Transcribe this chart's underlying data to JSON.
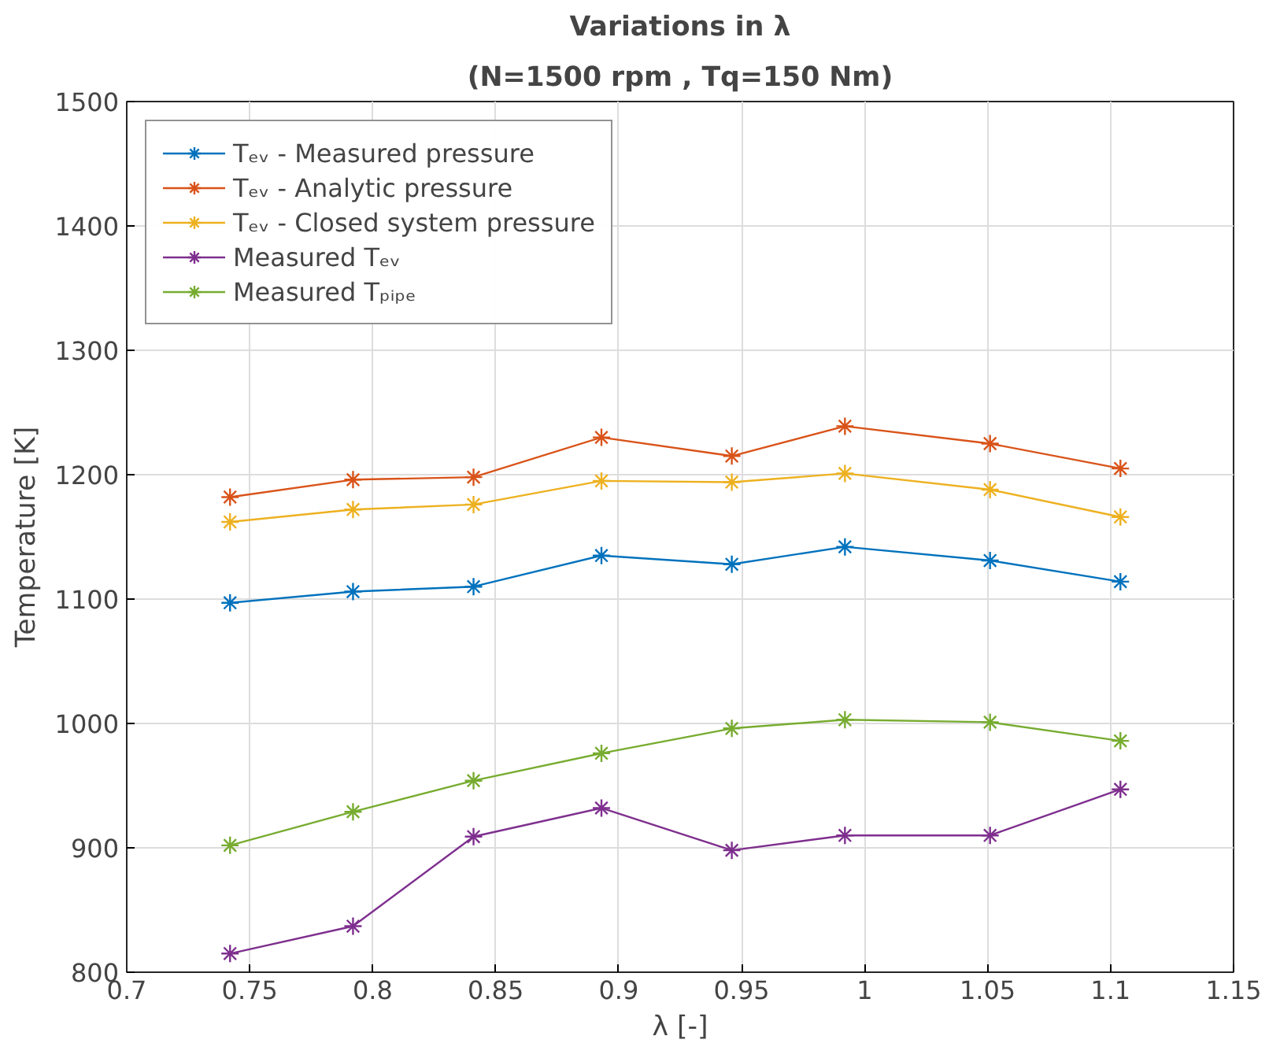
{
  "chart_data": {
    "type": "line",
    "title": "Variations in λ",
    "subtitle": "(N=1500 rpm , Tq=150 Nm)",
    "xlabel": "λ [-]",
    "ylabel": "Temperature [K]",
    "x": [
      0.742,
      0.792,
      0.841,
      0.893,
      0.946,
      0.992,
      1.051,
      1.104
    ],
    "series": [
      {
        "name": "Tₑᵥ - Measured pressure",
        "color": "#0072bd",
        "values": [
          1097,
          1106,
          1110,
          1135,
          1128,
          1142,
          1131,
          1114
        ]
      },
      {
        "name": "Tₑᵥ - Analytic pressure",
        "color": "#d95319",
        "values": [
          1182,
          1196,
          1198,
          1230,
          1215,
          1239,
          1225,
          1205
        ]
      },
      {
        "name": "Tₑᵥ - Closed system pressure",
        "color": "#edb120",
        "values": [
          1162,
          1172,
          1176,
          1195,
          1194,
          1201,
          1188,
          1166
        ]
      },
      {
        "name": "Measured Tₑᵥ",
        "color": "#7e2f8e",
        "values": [
          815,
          837,
          909,
          932,
          898,
          910,
          910,
          947
        ]
      },
      {
        "name": "Measured Tₚᵢₚₑ",
        "color": "#77ac30",
        "values": [
          902,
          929,
          954,
          976,
          996,
          1003,
          1001,
          986
        ]
      }
    ],
    "xlim": [
      0.7,
      1.15
    ],
    "xticks": [
      0.7,
      0.75,
      0.8,
      0.85,
      0.9,
      0.95,
      1,
      1.05,
      1.1,
      1.15
    ],
    "ylim": [
      800,
      1500
    ],
    "yticks": [
      800,
      900,
      1000,
      1100,
      1200,
      1300,
      1400,
      1500
    ],
    "grid": true,
    "legend": "top left",
    "marker": "cross",
    "line_style": "solid"
  }
}
